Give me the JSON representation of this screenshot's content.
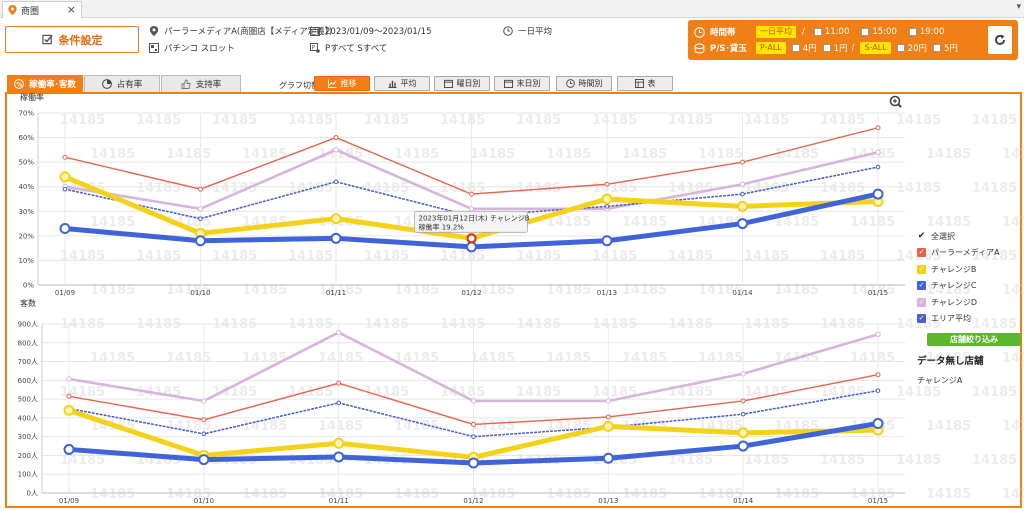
{
  "tab": {
    "title": "商圏"
  },
  "header": {
    "condition_button": "条件設定",
    "store": "パーラーメディアA(商圏店【メディア定義】)",
    "machine": "パチンコ スロット",
    "period": "2023/01/09～2023/01/15",
    "average": "一日平均",
    "machines_filter": "Pすべて Sすべて"
  },
  "time_panel": {
    "label_time": "時間帯",
    "day_avg": "一日平均",
    "sep": "/",
    "times": [
      "11:00",
      "15:00",
      "19:00"
    ],
    "label_ps": "P/S･貸玉",
    "p_all": "P-ALL",
    "p_opts": [
      "4円",
      "1円"
    ],
    "sep2": "/",
    "s_all": "S-ALL",
    "s_opts": [
      "20円",
      "5円"
    ]
  },
  "section_tabs": [
    "稼働率･客数",
    "占有率",
    "支持率"
  ],
  "graph_switch": {
    "label": "グラフ切替",
    "buttons": [
      "推移",
      "平均",
      "曜日別",
      "末日別",
      "時間別",
      "表"
    ]
  },
  "colors": {
    "accent": "#f07f16",
    "mediaA": "#e8644a",
    "challengeB": "#f5d21a",
    "challengeC": "#3f63d8",
    "challengeD": "#d7b4dc",
    "area": "#4a5fd6",
    "filter": "#5cb82a"
  },
  "watermark": "14185",
  "chart_data": [
    {
      "type": "line",
      "ylabel": "稼働率",
      "categories": [
        "01/09",
        "01/10",
        "01/11",
        "01/12",
        "01/13",
        "01/14",
        "01/15"
      ],
      "ylim": [
        0,
        70
      ],
      "yticks": [
        "0%",
        "10%",
        "20%",
        "30%",
        "40%",
        "50%",
        "60%",
        "70%"
      ],
      "series": [
        {
          "name": "パーラーメディアA",
          "values": [
            52,
            39,
            60,
            37,
            41,
            50,
            64
          ]
        },
        {
          "name": "チャレンジB",
          "values": [
            44,
            21,
            27,
            19,
            35,
            32,
            34
          ]
        },
        {
          "name": "チャレンジC",
          "values": [
            23,
            18,
            19,
            15.5,
            18,
            25,
            37
          ]
        },
        {
          "name": "チャレンジD",
          "values": [
            40,
            31,
            55,
            31,
            31,
            41,
            54
          ]
        },
        {
          "name": "エリア平均",
          "values": [
            39,
            27,
            42,
            28,
            32,
            37,
            48
          ]
        }
      ],
      "tooltip": {
        "title": "2023年01月12日(木) チャレンジB",
        "value": "稼働率 19.2%"
      }
    },
    {
      "type": "line",
      "ylabel": "客数",
      "categories": [
        "01/09",
        "01/10",
        "01/11",
        "01/12",
        "01/13",
        "01/14",
        "01/15"
      ],
      "ylim": [
        0,
        900
      ],
      "yticks": [
        "0人",
        "100人",
        "200人",
        "300人",
        "400人",
        "500人",
        "600人",
        "700人",
        "800人",
        "900人"
      ],
      "series": [
        {
          "name": "パーラーメディアA",
          "values": [
            515,
            390,
            585,
            365,
            405,
            490,
            630
          ]
        },
        {
          "name": "チャレンジB",
          "values": [
            440,
            200,
            265,
            190,
            355,
            320,
            335
          ]
        },
        {
          "name": "チャレンジC",
          "values": [
            232,
            178,
            192,
            160,
            185,
            250,
            370
          ]
        },
        {
          "name": "チャレンジD",
          "values": [
            607,
            490,
            855,
            490,
            490,
            635,
            845
          ]
        },
        {
          "name": "エリア平均",
          "values": [
            450,
            315,
            480,
            300,
            350,
            420,
            545
          ]
        }
      ]
    }
  ],
  "legend": {
    "items": [
      "全選択",
      "パーラーメディアA",
      "チャレンジB",
      "チャレンジC",
      "チャレンジD",
      "エリア平均"
    ],
    "filter_button": "店舗絞り込み",
    "nodata_heading": "データ無し店舗",
    "nodata_store": "チャレンジA"
  }
}
